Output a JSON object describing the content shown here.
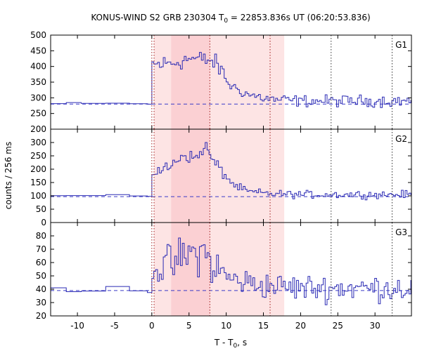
{
  "chart_data": {
    "type": "line",
    "title": "KONUS-WIND S2 GRB 230304 T",
    "title_sub": "0",
    "title_rest": " = 22853.836s UT (06:20:53.836)",
    "xlabel": "T - T",
    "xlabel_sub": "0",
    "xlabel_rest": ", s",
    "ylabel": "counts / 256 ms",
    "xlim": [
      -13.6,
      34.9
    ],
    "x_ticks": [
      -10,
      -5,
      0,
      5,
      10,
      15,
      20,
      25,
      30
    ],
    "x_tick_labels": [
      "-10",
      "-5",
      "0",
      "5",
      "10",
      "15",
      "20",
      "25",
      "30"
    ],
    "shaded_regions": [
      {
        "x0": 0.3,
        "x1": 17.8,
        "color": "#fde4e4"
      },
      {
        "x0": 2.6,
        "x1": 7.8,
        "color": "#fbd0d3"
      }
    ],
    "vertical_lines": {
      "red": [
        0.0,
        0.3,
        7.8,
        15.9
      ],
      "black": [
        24.1,
        32.3
      ]
    },
    "bin_width": 0.256,
    "panels": [
      {
        "name": "G1",
        "ylim": [
          200,
          500
        ],
        "y_ticks": [
          250,
          300,
          350,
          400,
          450,
          500
        ],
        "y_tick_labels": [
          "250",
          "300",
          "350",
          "400",
          "450",
          "500"
        ],
        "background": 280,
        "pre_level": 281,
        "post_level": 290,
        "profile": [
          {
            "t": 0,
            "v": 405
          },
          {
            "t": 2.6,
            "v": 410
          },
          {
            "t": 5,
            "v": 425
          },
          {
            "t": 7.8,
            "v": 420
          },
          {
            "t": 9,
            "v": 400
          },
          {
            "t": 10.5,
            "v": 340
          },
          {
            "t": 13,
            "v": 310
          },
          {
            "t": 16,
            "v": 295
          },
          {
            "t": 20,
            "v": 290
          }
        ],
        "noise": 13
      },
      {
        "name": "G2",
        "ylim": [
          0,
          350
        ],
        "y_ticks": [
          0,
          50,
          100,
          150,
          200,
          250,
          300
        ],
        "y_tick_labels": [
          "0",
          "50",
          "100",
          "150",
          "200",
          "250",
          "300"
        ],
        "background": 97,
        "pre_level": 100,
        "post_level": 105,
        "profile": [
          {
            "t": 0,
            "v": 185
          },
          {
            "t": 2.6,
            "v": 210
          },
          {
            "t": 4,
            "v": 255
          },
          {
            "t": 6,
            "v": 240
          },
          {
            "t": 7.2,
            "v": 290
          },
          {
            "t": 8.2,
            "v": 230
          },
          {
            "t": 9.2,
            "v": 200
          },
          {
            "t": 11,
            "v": 140
          },
          {
            "t": 13,
            "v": 115
          },
          {
            "t": 16,
            "v": 108
          },
          {
            "t": 20,
            "v": 105
          }
        ],
        "noise": 10
      },
      {
        "name": "G3",
        "ylim": [
          20,
          90
        ],
        "y_ticks": [
          20,
          30,
          40,
          50,
          60,
          70,
          80
        ],
        "y_tick_labels": [
          "20",
          "30",
          "40",
          "50",
          "60",
          "70",
          "80"
        ],
        "background": 39,
        "pre_level": 40,
        "post_level": 41,
        "profile": [
          {
            "t": 0,
            "v": 55
          },
          {
            "t": 2.6,
            "v": 58
          },
          {
            "t": 4.5,
            "v": 65
          },
          {
            "t": 7,
            "v": 68
          },
          {
            "t": 8.5,
            "v": 55
          },
          {
            "t": 11,
            "v": 47
          },
          {
            "t": 15,
            "v": 43
          },
          {
            "t": 20,
            "v": 41
          }
        ],
        "noise": 7
      }
    ]
  }
}
